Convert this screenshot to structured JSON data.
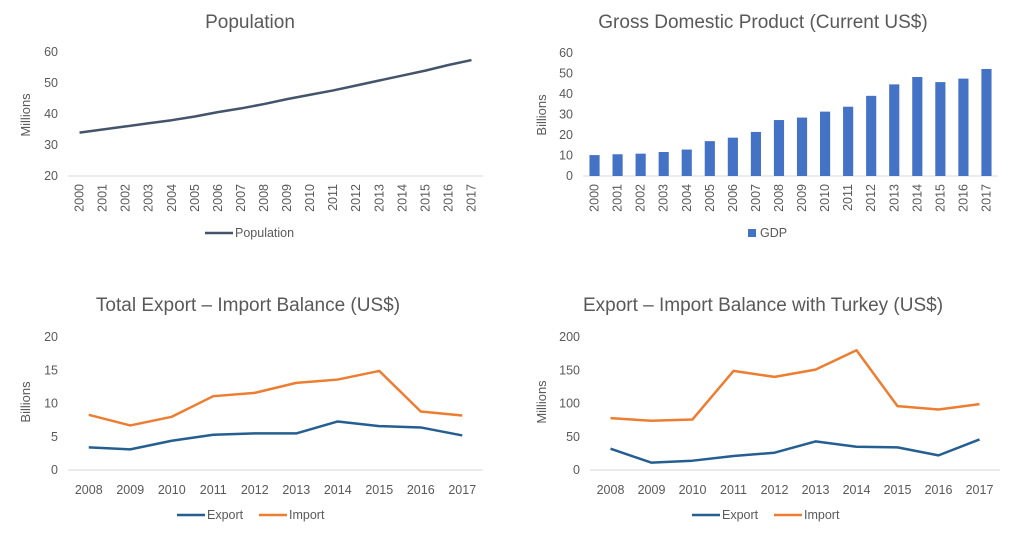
{
  "chart_data": [
    {
      "type": "line",
      "title": "Population",
      "ylabel": "Millions",
      "ylim": [
        20,
        60
      ],
      "yticks": [
        20,
        30,
        40,
        50,
        60
      ],
      "categories": [
        "2000",
        "2001",
        "2002",
        "2003",
        "2004",
        "2005",
        "2006",
        "2007",
        "2008",
        "2009",
        "2010",
        "2011",
        "2012",
        "2013",
        "2014",
        "2015",
        "2016",
        "2017"
      ],
      "series": [
        {
          "name": "Population",
          "color": "#44546a",
          "values": [
            34,
            35,
            36,
            37,
            38,
            39.2,
            40.6,
            41.8,
            43.2,
            44.8,
            46.2,
            47.6,
            49.2,
            50.8,
            52.4,
            54,
            55.8,
            57.4
          ]
        }
      ],
      "legend": "bottom",
      "grid": false
    },
    {
      "type": "bar",
      "title": "Gross Domestic Product (Current US$)",
      "ylabel": "Billions",
      "ylim": [
        0,
        60
      ],
      "yticks": [
        0,
        10,
        20,
        30,
        40,
        50,
        60
      ],
      "categories": [
        "2000",
        "2001",
        "2002",
        "2003",
        "2004",
        "2005",
        "2006",
        "2007",
        "2008",
        "2009",
        "2010",
        "2011",
        "2012",
        "2013",
        "2014",
        "2015",
        "2016",
        "2017"
      ],
      "series": [
        {
          "name": "GDP",
          "color": "#4472c4",
          "values": [
            10.2,
            10.6,
            10.9,
            11.7,
            12.9,
            17,
            18.7,
            21.5,
            27.3,
            28.5,
            31.4,
            33.8,
            39.1,
            44.7,
            48.3,
            45.8,
            47.5,
            52.2
          ]
        }
      ],
      "legend": "bottom",
      "grid": false
    },
    {
      "type": "line",
      "title": "Total Export – Import Balance (US$)",
      "ylabel": "Billions",
      "ylim": [
        0,
        20
      ],
      "yticks": [
        0,
        5,
        10,
        15,
        20
      ],
      "categories": [
        "2008",
        "2009",
        "2010",
        "2011",
        "2012",
        "2013",
        "2014",
        "2015",
        "2016",
        "2017"
      ],
      "series": [
        {
          "name": "Export",
          "color": "#255e91",
          "values": [
            3.4,
            3.1,
            4.4,
            5.3,
            5.5,
            5.5,
            7.3,
            6.6,
            6.4,
            5.2
          ]
        },
        {
          "name": "Import",
          "color": "#ed7d31",
          "values": [
            8.3,
            6.7,
            8.0,
            11.1,
            11.6,
            13.1,
            13.6,
            14.9,
            8.8,
            8.2
          ]
        }
      ],
      "legend": "bottom",
      "grid": false
    },
    {
      "type": "line",
      "title": "Export – Import Balance with Turkey (US$)",
      "ylabel": "Millions",
      "ylim": [
        0,
        200
      ],
      "yticks": [
        0,
        50,
        100,
        150,
        200
      ],
      "categories": [
        "2008",
        "2009",
        "2010",
        "2011",
        "2012",
        "2013",
        "2014",
        "2015",
        "2016",
        "2017"
      ],
      "series": [
        {
          "name": "Export",
          "color": "#255e91",
          "values": [
            32,
            11,
            14,
            21,
            26,
            43,
            35,
            34,
            22,
            46
          ]
        },
        {
          "name": "Import",
          "color": "#ed7d31",
          "values": [
            78,
            74,
            76,
            149,
            140,
            151,
            180,
            96,
            91,
            99
          ]
        }
      ],
      "legend": "bottom",
      "grid": false
    }
  ]
}
